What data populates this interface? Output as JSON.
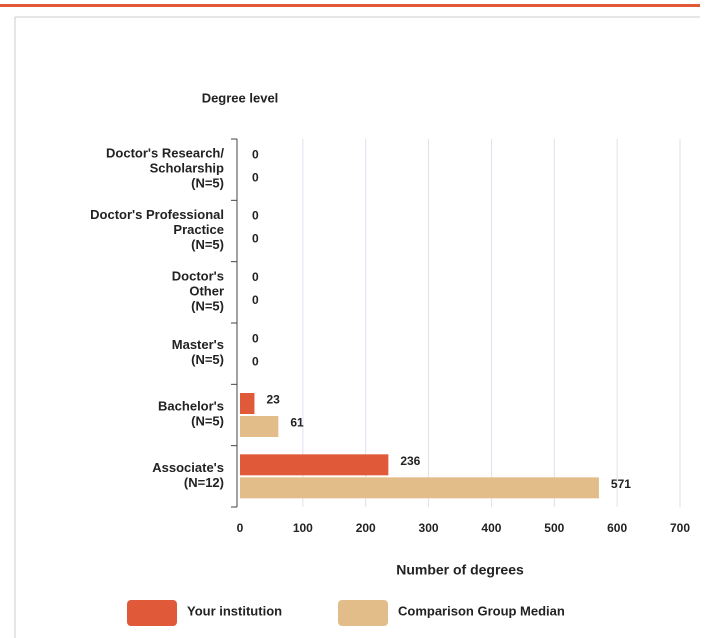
{
  "chart_data": {
    "type": "bar",
    "orientation": "horizontal",
    "y_label": "Degree level",
    "x_label": "Number of degrees",
    "categories": [
      "Doctor's Research/\nScholarship\n(N=5)",
      "Doctor's Professional\nPractice\n(N=5)",
      "Doctor's\nOther\n(N=5)",
      "Master's\n(N=5)",
      "Bachelor's\n(N=5)",
      "Associate's\n(N=12)"
    ],
    "series": [
      {
        "name": "Your institution",
        "color": "#e05a3a",
        "values": [
          0,
          0,
          0,
          0,
          23,
          236
        ]
      },
      {
        "name": "Comparison Group Median",
        "color": "#e2bd8a",
        "values": [
          0,
          0,
          0,
          0,
          61,
          571
        ]
      }
    ],
    "xlim": [
      0,
      700
    ],
    "xticks": [
      0,
      100,
      200,
      300,
      400,
      500,
      600,
      700
    ],
    "grid": true
  }
}
